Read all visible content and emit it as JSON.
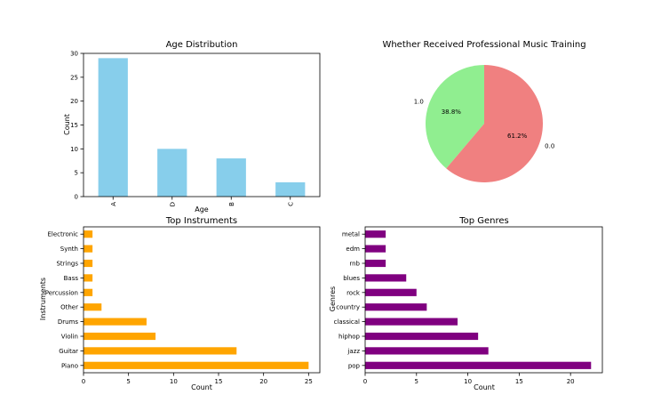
{
  "chart_data": [
    {
      "type": "bar",
      "title": "Age Distribution",
      "xlabel": "Age",
      "ylabel": "Count",
      "categories": [
        "A",
        "D",
        "B",
        "C"
      ],
      "values": [
        29,
        10,
        8,
        3
      ],
      "ylim": [
        0,
        30
      ],
      "yticks": [
        0,
        5,
        10,
        15,
        20,
        25,
        30
      ],
      "color": "#87ceeb",
      "grid": false
    },
    {
      "type": "pie",
      "title": "Whether Received Professional Music Training",
      "labels": [
        "1.0",
        "0.0"
      ],
      "values": [
        38.8,
        61.2
      ],
      "pct_labels": [
        "38.8%",
        "61.2%"
      ],
      "colors": [
        "#90ee90",
        "#f08080"
      ]
    },
    {
      "type": "barh",
      "title": "Top Instruments",
      "xlabel": "Count",
      "ylabel": "Instruments",
      "categories": [
        "Piano",
        "Guitar",
        "Violin",
        "Drums",
        "Other",
        "Percussion",
        "Bass",
        "Strings",
        "Synth",
        "Electronic"
      ],
      "values": [
        25,
        17,
        8,
        7,
        2,
        1,
        1,
        1,
        1,
        1
      ],
      "xlim": [
        0,
        26.25
      ],
      "xticks": [
        0,
        5,
        10,
        15,
        20,
        25
      ],
      "color": "#ffa500",
      "grid": false
    },
    {
      "type": "barh",
      "title": "Top Genres",
      "xlabel": "Count",
      "ylabel": "Genres",
      "categories": [
        "pop",
        "jazz",
        "hiphop",
        "classical",
        "country",
        "rock",
        "blues",
        "rnb",
        "edm",
        "metal"
      ],
      "values": [
        22,
        12,
        11,
        9,
        6,
        5,
        4,
        2,
        2,
        2
      ],
      "xlim": [
        0,
        23.1
      ],
      "xticks": [
        0,
        5,
        10,
        15,
        20
      ],
      "color": "#800080",
      "grid": false
    }
  ]
}
